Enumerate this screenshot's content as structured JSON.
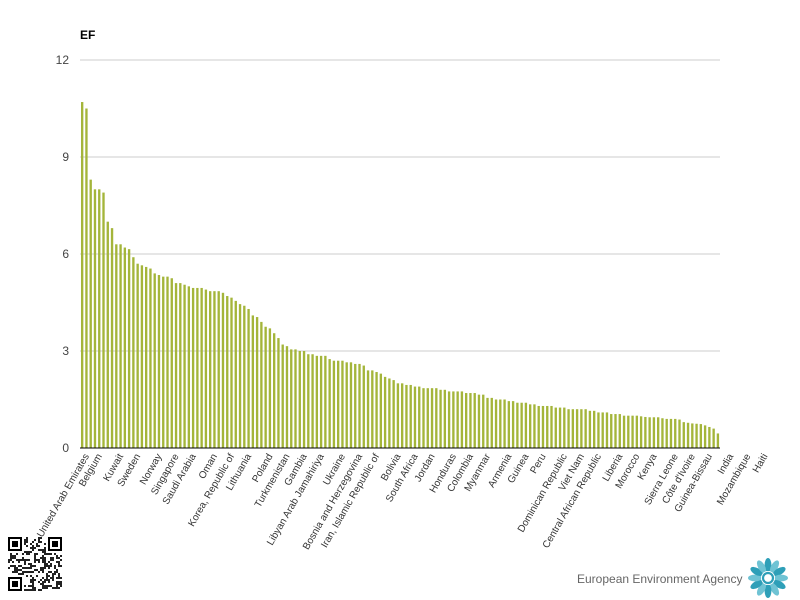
{
  "chart_data": {
    "type": "bar",
    "ylabel": "EF",
    "ylim": [
      0,
      12
    ],
    "yticks": [
      0,
      3,
      6,
      9,
      12
    ],
    "grid": true,
    "bar_color": "#a4b53a",
    "values": [
      10.7,
      10.5,
      8.3,
      8.0,
      8.0,
      7.9,
      7.0,
      6.8,
      6.3,
      6.3,
      6.2,
      6.15,
      5.9,
      5.7,
      5.65,
      5.6,
      5.55,
      5.4,
      5.35,
      5.3,
      5.3,
      5.25,
      5.1,
      5.1,
      5.05,
      5.0,
      4.95,
      4.95,
      4.95,
      4.9,
      4.85,
      4.85,
      4.85,
      4.8,
      4.7,
      4.65,
      4.55,
      4.45,
      4.4,
      4.3,
      4.1,
      4.05,
      3.9,
      3.75,
      3.7,
      3.55,
      3.4,
      3.2,
      3.15,
      3.05,
      3.05,
      3.0,
      3.0,
      2.9,
      2.9,
      2.85,
      2.85,
      2.85,
      2.75,
      2.7,
      2.7,
      2.7,
      2.65,
      2.65,
      2.6,
      2.6,
      2.55,
      2.4,
      2.4,
      2.35,
      2.3,
      2.2,
      2.15,
      2.1,
      2.0,
      2.0,
      1.95,
      1.95,
      1.9,
      1.9,
      1.85,
      1.85,
      1.85,
      1.85,
      1.8,
      1.8,
      1.75,
      1.75,
      1.75,
      1.75,
      1.7,
      1.7,
      1.7,
      1.65,
      1.65,
      1.55,
      1.55,
      1.5,
      1.5,
      1.5,
      1.45,
      1.45,
      1.4,
      1.4,
      1.4,
      1.35,
      1.35,
      1.3,
      1.3,
      1.3,
      1.3,
      1.25,
      1.25,
      1.25,
      1.2,
      1.2,
      1.2,
      1.2,
      1.2,
      1.15,
      1.15,
      1.1,
      1.1,
      1.1,
      1.05,
      1.05,
      1.05,
      1.0,
      1.0,
      1.0,
      1.0,
      0.98,
      0.96,
      0.95,
      0.95,
      0.95,
      0.92,
      0.9,
      0.9,
      0.9,
      0.88,
      0.8,
      0.78,
      0.76,
      0.75,
      0.74,
      0.7,
      0.65,
      0.6,
      0.45
    ],
    "x_labels": [
      {
        "text": "United Arab Emirates",
        "index": 1
      },
      {
        "text": "Belgium",
        "index": 4
      },
      {
        "text": "Kuwait",
        "index": 9
      },
      {
        "text": "Sweden",
        "index": 13
      },
      {
        "text": "Norway",
        "index": 18
      },
      {
        "text": "Singapore",
        "index": 22
      },
      {
        "text": "Saudi Arabia",
        "index": 26
      },
      {
        "text": "Oman",
        "index": 31
      },
      {
        "text": "Korea, Republic of",
        "index": 35
      },
      {
        "text": "Lithuania",
        "index": 39
      },
      {
        "text": "Poland",
        "index": 44
      },
      {
        "text": "Turkmenistan",
        "index": 48
      },
      {
        "text": "Gambia",
        "index": 52
      },
      {
        "text": "Libyan Arab Jamahiriya",
        "index": 56
      },
      {
        "text": "Ukraine",
        "index": 61
      },
      {
        "text": "Bosnia and Herzegovina",
        "index": 65
      },
      {
        "text": "Iran, Islamic Republic of",
        "index": 69
      },
      {
        "text": "Bolivia",
        "index": 74
      },
      {
        "text": "South Africa",
        "index": 78
      },
      {
        "text": "Jordan",
        "index": 82
      },
      {
        "text": "Honduras",
        "index": 87
      },
      {
        "text": "Colombia",
        "index": 91
      },
      {
        "text": "Myanmar",
        "index": 95
      },
      {
        "text": "Armenia",
        "index": 100
      },
      {
        "text": "Guinea",
        "index": 104
      },
      {
        "text": "Peru",
        "index": 108
      },
      {
        "text": "Dominican Republic",
        "index": 113
      },
      {
        "text": "Viet Nam",
        "index": 117
      },
      {
        "text": "Central African Republic",
        "index": 121
      },
      {
        "text": "Liberia",
        "index": 126
      },
      {
        "text": "Morocco",
        "index": 130
      },
      {
        "text": "Kenya",
        "index": 134
      },
      {
        "text": "Sierra Leone",
        "index": 139
      },
      {
        "text": "Côte d'Ivoire",
        "index": 143
      },
      {
        "text": "Guinea-Bissau",
        "index": 147
      },
      {
        "text": "India",
        "index": 152
      },
      {
        "text": "Mozambique",
        "index": 156
      },
      {
        "text": "Haiti",
        "index": 160
      }
    ]
  },
  "footer": {
    "agency_name": "European Environment Agency"
  }
}
